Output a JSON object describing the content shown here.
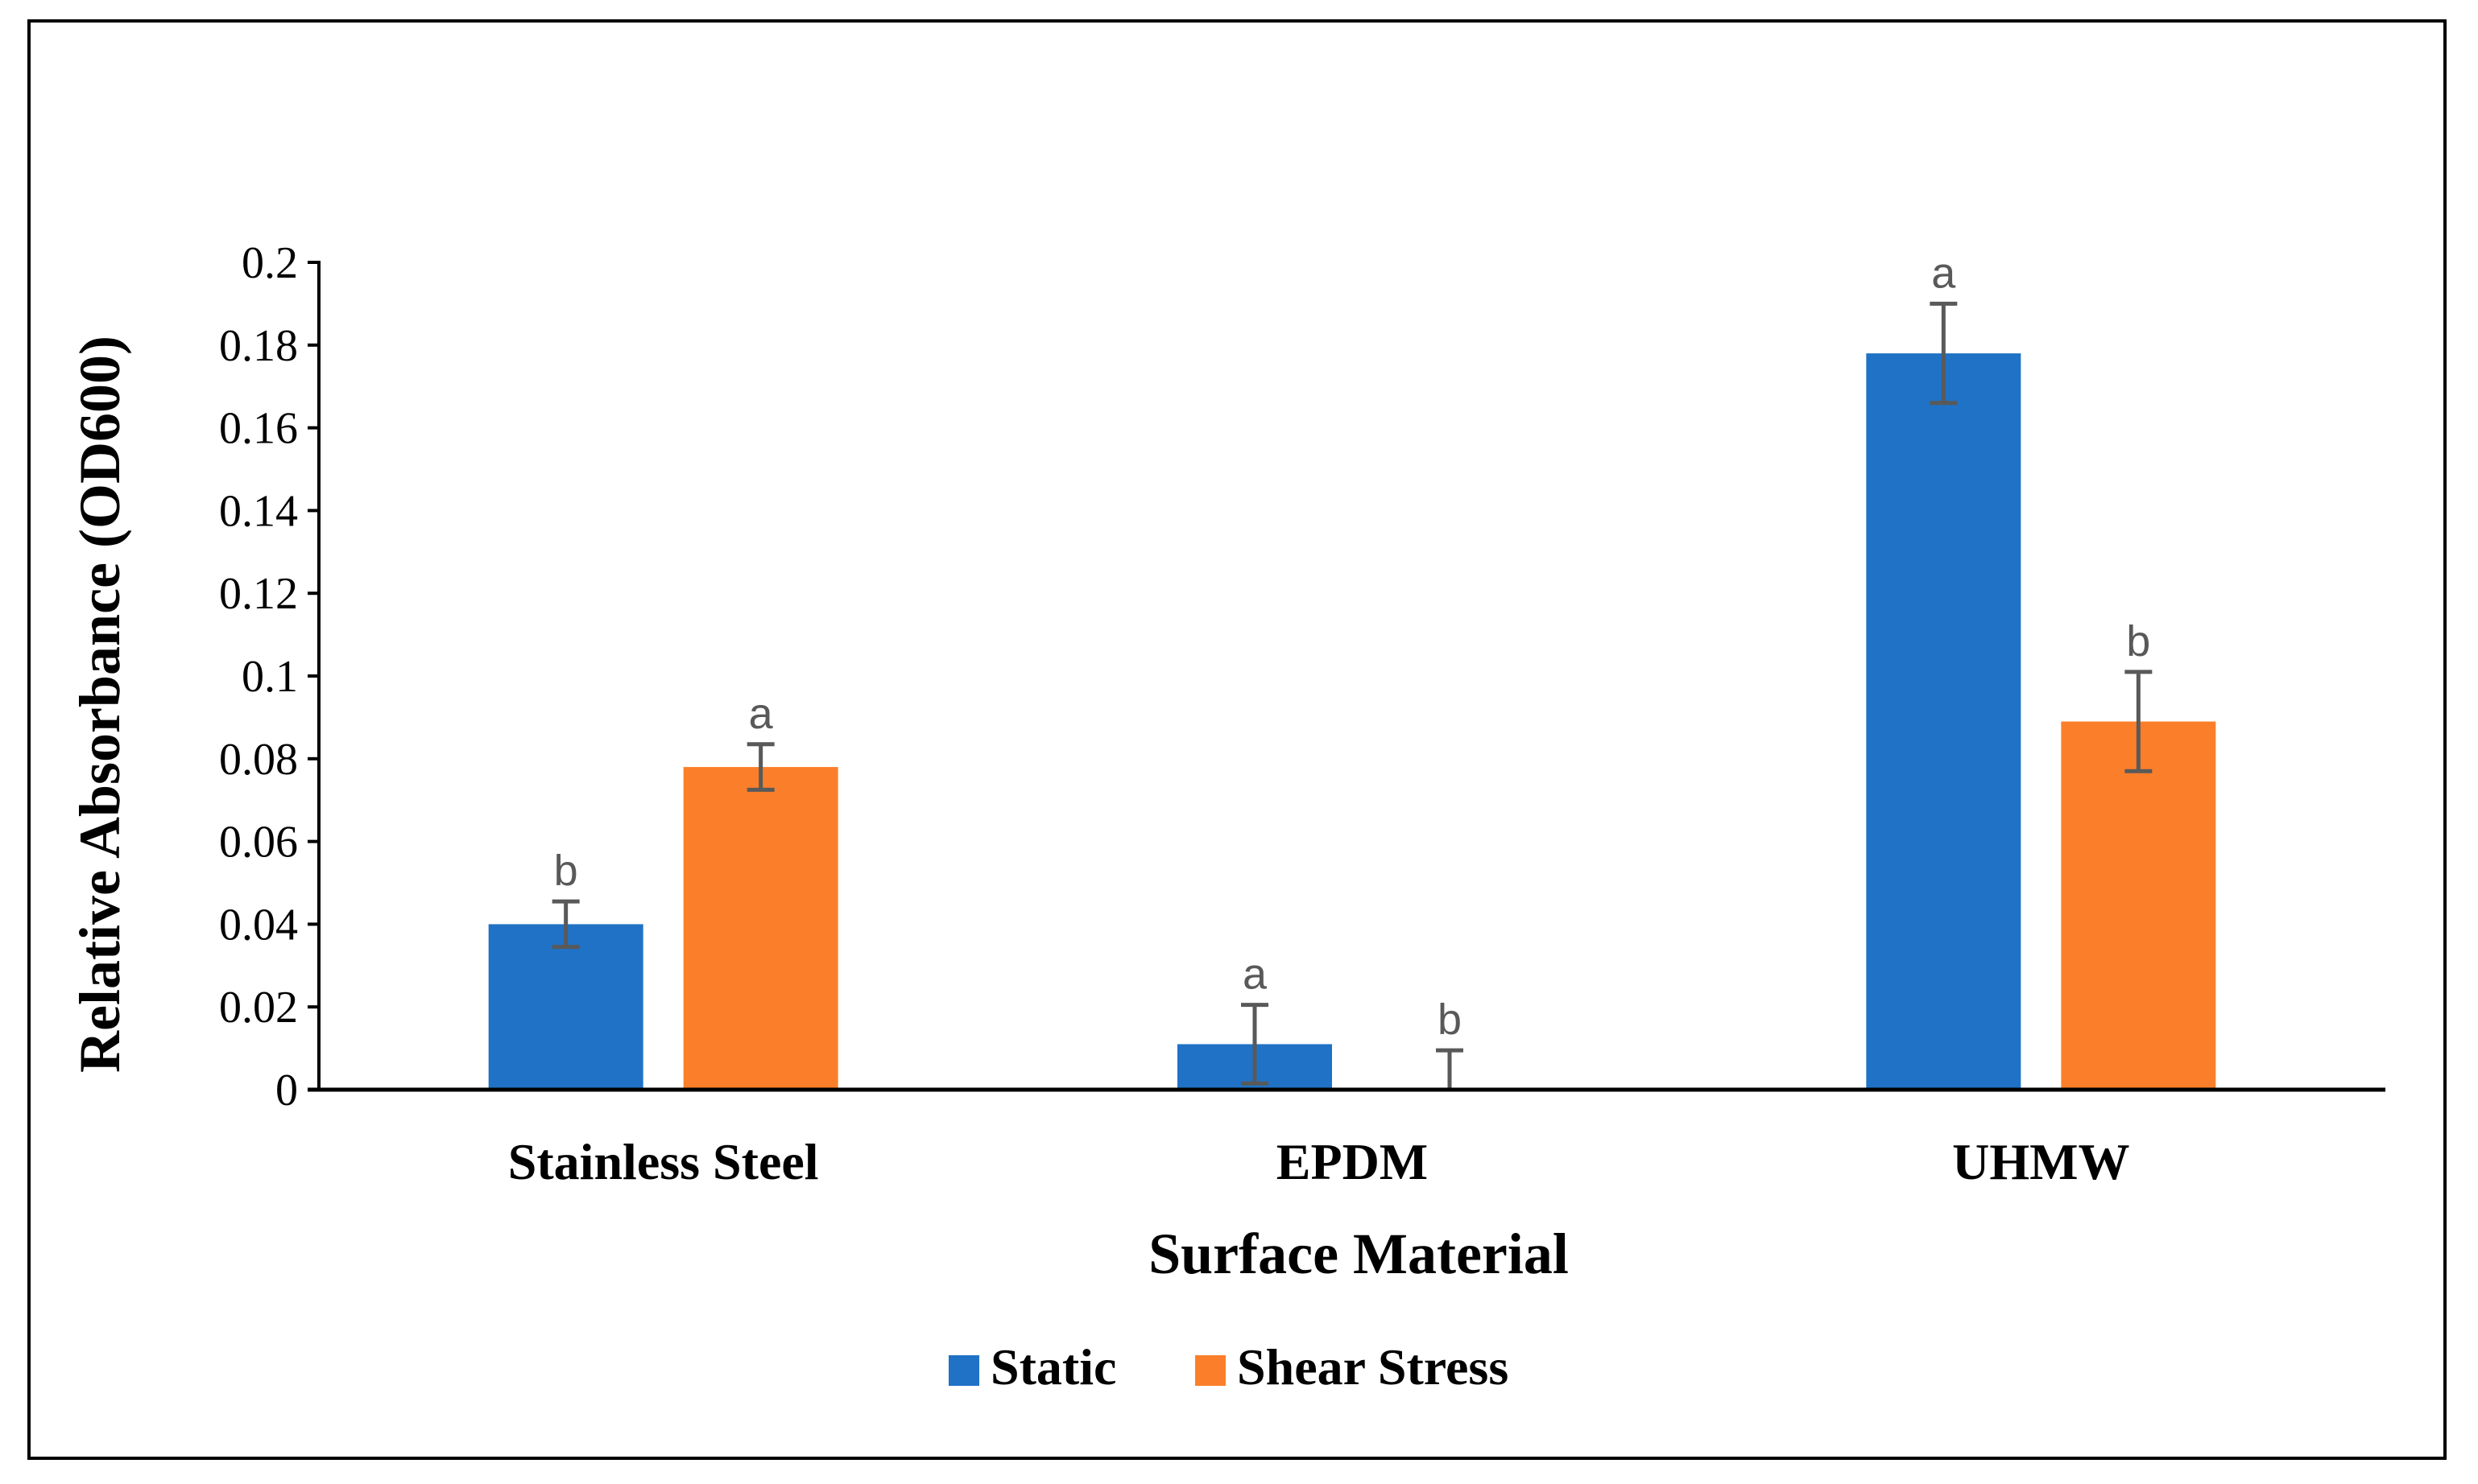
{
  "chart_data": {
    "type": "bar",
    "title": "",
    "xlabel": "Surface Material",
    "ylabel": "Relative Absorbance (OD600)",
    "ylim": [
      0,
      0.2
    ],
    "yticks": [
      0,
      0.02,
      0.04,
      0.06,
      0.08,
      0.1,
      0.12,
      0.14,
      0.16,
      0.18,
      0.2
    ],
    "ytick_labels": [
      "0",
      "0.02",
      "0.04",
      "0.06",
      "0.08",
      "0.1",
      "0.12",
      "0.14",
      "0.16",
      "0.18",
      "0.2"
    ],
    "categories": [
      "Stainless Steel",
      "EPDM",
      "UHMW"
    ],
    "grid": false,
    "legend_position": "bottom-center",
    "series": [
      {
        "name": "Static",
        "color": "#1f72c6",
        "values": [
          0.04,
          0.011,
          0.178
        ],
        "errors": [
          0.0055,
          0.0095,
          0.012
        ],
        "significance": [
          "b",
          "a",
          "a"
        ]
      },
      {
        "name": "Shear Stress",
        "color": "#fb7f2a",
        "values": [
          0.078,
          0.0,
          0.089
        ],
        "errors": [
          0.0055,
          0.0095,
          0.012
        ],
        "significance": [
          "a",
          "b",
          "b"
        ]
      }
    ]
  }
}
